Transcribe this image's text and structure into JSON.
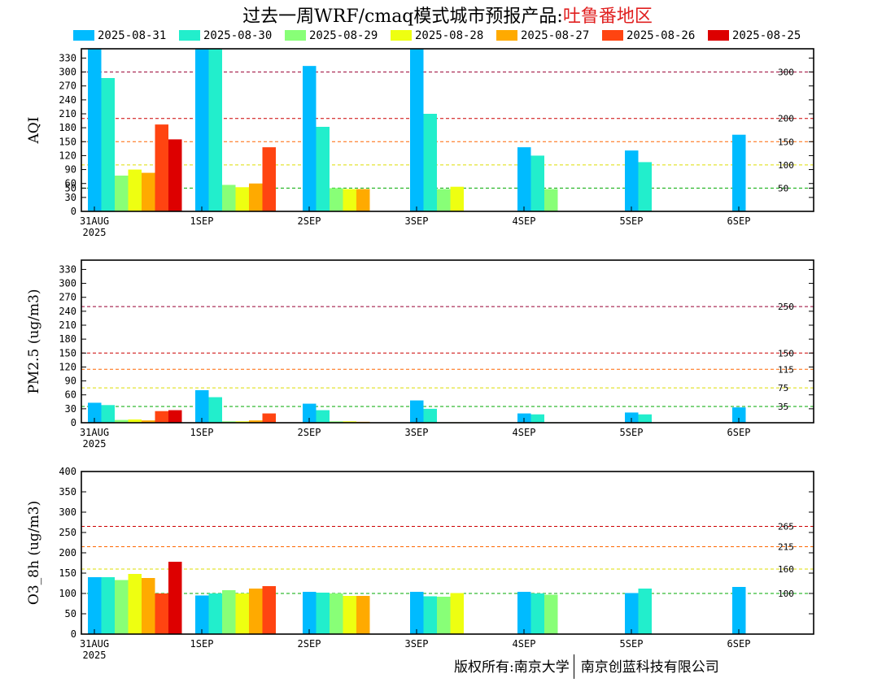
{
  "title_main": "过去一周WRF/cmaq模式城市预报产品:",
  "title_region": "吐鲁番地区",
  "legend": [
    {
      "label": "2025-08-31",
      "color": "#00bbff"
    },
    {
      "label": "2025-08-30",
      "color": "#22eecc"
    },
    {
      "label": "2025-08-29",
      "color": "#88ff77"
    },
    {
      "label": "2025-08-28",
      "color": "#eeff11"
    },
    {
      "label": "2025-08-27",
      "color": "#ffaa00"
    },
    {
      "label": "2025-08-26",
      "color": "#ff4411"
    },
    {
      "label": "2025-08-25",
      "color": "#dd0000"
    }
  ],
  "copyright_left": "版权所有:南京大学",
  "copyright_right": "南京创蓝科技有限公司",
  "chart_data": [
    {
      "type": "bar",
      "ylabel": "AQI",
      "categories": [
        "31AUG",
        "1SEP",
        "2SEP",
        "3SEP",
        "4SEP",
        "5SEP",
        "6SEP"
      ],
      "x_sublabel": "2025",
      "ylim": [
        0,
        350
      ],
      "yticks": [
        0,
        30,
        50,
        60,
        90,
        120,
        150,
        180,
        210,
        240,
        270,
        300,
        330
      ],
      "reference_lines": [
        {
          "value": 300,
          "label": "300",
          "color": "#990033"
        },
        {
          "value": 200,
          "label": "200",
          "color": "#cc0000"
        },
        {
          "value": 150,
          "label": "150",
          "color": "#ff6600"
        },
        {
          "value": 100,
          "label": "100",
          "color": "#dddd00"
        },
        {
          "value": 50,
          "label": "50",
          "color": "#00aa00"
        }
      ],
      "series": [
        {
          "name": "2025-08-31",
          "values": [
            350,
            350,
            313,
            350,
            138,
            131,
            165
          ]
        },
        {
          "name": "2025-08-30",
          "values": [
            287,
            350,
            182,
            210,
            120,
            106,
            null
          ]
        },
        {
          "name": "2025-08-29",
          "values": [
            77,
            57,
            50,
            48,
            48,
            null,
            null
          ]
        },
        {
          "name": "2025-08-28",
          "values": [
            90,
            52,
            48,
            53,
            null,
            null,
            null
          ]
        },
        {
          "name": "2025-08-27",
          "values": [
            83,
            60,
            48,
            null,
            null,
            null,
            null
          ]
        },
        {
          "name": "2025-08-26",
          "values": [
            187,
            138,
            null,
            null,
            null,
            null,
            null
          ]
        },
        {
          "name": "2025-08-25",
          "values": [
            155,
            null,
            null,
            null,
            null,
            null,
            null
          ]
        }
      ]
    },
    {
      "type": "bar",
      "ylabel": "PM2.5 (ug/m3)",
      "categories": [
        "31AUG",
        "1SEP",
        "2SEP",
        "3SEP",
        "4SEP",
        "5SEP",
        "6SEP"
      ],
      "x_sublabel": "2025",
      "ylim": [
        0,
        350
      ],
      "yticks": [
        0,
        30,
        60,
        90,
        120,
        150,
        180,
        210,
        240,
        270,
        300,
        330
      ],
      "reference_lines": [
        {
          "value": 250,
          "label": "250",
          "color": "#990033"
        },
        {
          "value": 150,
          "label": "150",
          "color": "#cc0000"
        },
        {
          "value": 115,
          "label": "115",
          "color": "#ff6600"
        },
        {
          "value": 75,
          "label": "75",
          "color": "#dddd00"
        },
        {
          "value": 35,
          "label": "35",
          "color": "#00aa00"
        }
      ],
      "series": [
        {
          "name": "2025-08-31",
          "values": [
            43,
            70,
            41,
            48,
            20,
            22,
            33
          ]
        },
        {
          "name": "2025-08-30",
          "values": [
            38,
            55,
            27,
            30,
            18,
            18,
            null
          ]
        },
        {
          "name": "2025-08-29",
          "values": [
            6,
            3,
            3,
            1,
            1,
            null,
            null
          ]
        },
        {
          "name": "2025-08-28",
          "values": [
            7,
            3,
            3,
            1,
            null,
            null,
            null
          ]
        },
        {
          "name": "2025-08-27",
          "values": [
            5,
            5,
            2,
            null,
            null,
            null,
            null
          ]
        },
        {
          "name": "2025-08-26",
          "values": [
            25,
            20,
            null,
            null,
            null,
            null,
            null
          ]
        },
        {
          "name": "2025-08-25",
          "values": [
            27,
            null,
            null,
            null,
            null,
            null,
            null
          ]
        }
      ]
    },
    {
      "type": "bar",
      "ylabel": "O3_8h (ug/m3)",
      "categories": [
        "31AUG",
        "1SEP",
        "2SEP",
        "3SEP",
        "4SEP",
        "5SEP",
        "6SEP"
      ],
      "x_sublabel": "2025",
      "ylim": [
        0,
        400
      ],
      "yticks": [
        0,
        50,
        100,
        150,
        200,
        250,
        300,
        350,
        400
      ],
      "reference_lines": [
        {
          "value": 265,
          "label": "265",
          "color": "#cc0000"
        },
        {
          "value": 215,
          "label": "215",
          "color": "#ff6600"
        },
        {
          "value": 160,
          "label": "160",
          "color": "#dddd00"
        },
        {
          "value": 100,
          "label": "100",
          "color": "#00aa00"
        }
      ],
      "series": [
        {
          "name": "2025-08-31",
          "values": [
            140,
            95,
            104,
            104,
            104,
            101,
            116
          ]
        },
        {
          "name": "2025-08-30",
          "values": [
            140,
            100,
            102,
            93,
            100,
            112,
            null
          ]
        },
        {
          "name": "2025-08-29",
          "values": [
            133,
            108,
            100,
            92,
            97,
            null,
            null
          ]
        },
        {
          "name": "2025-08-28",
          "values": [
            148,
            100,
            94,
            101,
            null,
            null,
            null
          ]
        },
        {
          "name": "2025-08-27",
          "values": [
            138,
            112,
            94,
            null,
            null,
            null,
            null
          ]
        },
        {
          "name": "2025-08-26",
          "values": [
            100,
            118,
            null,
            null,
            null,
            null,
            null
          ]
        },
        {
          "name": "2025-08-25",
          "values": [
            178,
            null,
            null,
            null,
            null,
            null,
            null
          ]
        }
      ]
    }
  ]
}
